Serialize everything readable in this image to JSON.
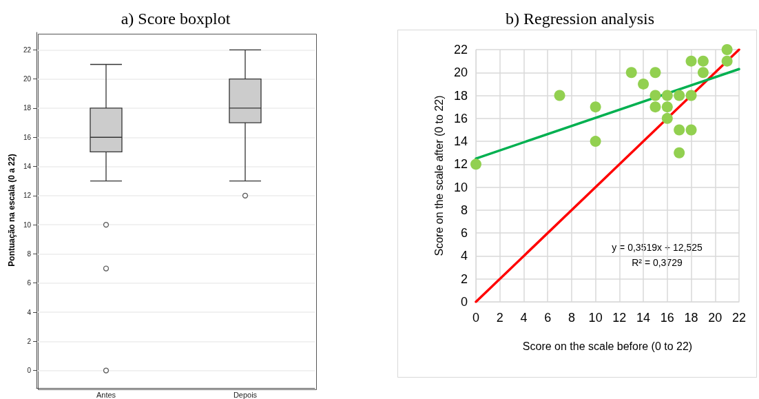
{
  "chart_data": [
    {
      "type": "box",
      "title": "a) Score boxplot",
      "ylabel": "Pontuação na escala (0 a 22)",
      "categories": [
        "Antes",
        "Depois"
      ],
      "color": "#cccccc",
      "boxes": [
        {
          "low": 13,
          "q1": 15,
          "median": 16,
          "q3": 18,
          "high": 21,
          "outliers": [
            10,
            7,
            0
          ]
        },
        {
          "low": 13,
          "q1": 17,
          "median": 18,
          "q3": 20,
          "high": 22,
          "outliers": [
            12
          ]
        }
      ],
      "ylim": [
        -1.2,
        23.2
      ],
      "yticks": [
        0,
        2,
        4,
        6,
        8,
        10,
        12,
        14,
        16,
        18,
        20,
        22
      ],
      "grid": "y"
    },
    {
      "type": "scatter",
      "title": "b) Regression analysis",
      "xlabel": "Score on the scale before (0 to 22)",
      "ylabel": "Score on the scale after (0 to 22)",
      "xlim": [
        0,
        22
      ],
      "ylim": [
        0,
        22
      ],
      "xticks": [
        0,
        2,
        4,
        6,
        8,
        10,
        12,
        14,
        16,
        18,
        20,
        22
      ],
      "yticks": [
        0,
        2,
        4,
        6,
        8,
        10,
        12,
        14,
        16,
        18,
        20,
        22
      ],
      "grid": true,
      "series": [
        {
          "type": "line",
          "color": "#ff0000",
          "marker": "none",
          "x": [
            0,
            22
          ],
          "values": [
            0,
            22
          ]
        },
        {
          "type": "line",
          "color": "#00b050",
          "marker": "none",
          "x": [
            0,
            22
          ],
          "values": [
            12.5,
            20.3
          ]
        },
        {
          "type": "scatter",
          "color": "#92d050",
          "marker": "circle",
          "x": [
            0,
            7,
            10,
            10,
            13,
            14,
            15,
            15,
            15,
            16,
            16,
            16,
            17,
            17,
            17,
            18,
            18,
            18,
            19,
            19,
            21,
            21
          ],
          "values": [
            12,
            18,
            17,
            14,
            20,
            19,
            20,
            18,
            17,
            18,
            17,
            16,
            18,
            15,
            13,
            21,
            18,
            15,
            21,
            20,
            22,
            21
          ]
        }
      ],
      "annotations": [
        "y = 0,3519x + 12,525",
        "R² = 0,3729"
      ]
    }
  ]
}
